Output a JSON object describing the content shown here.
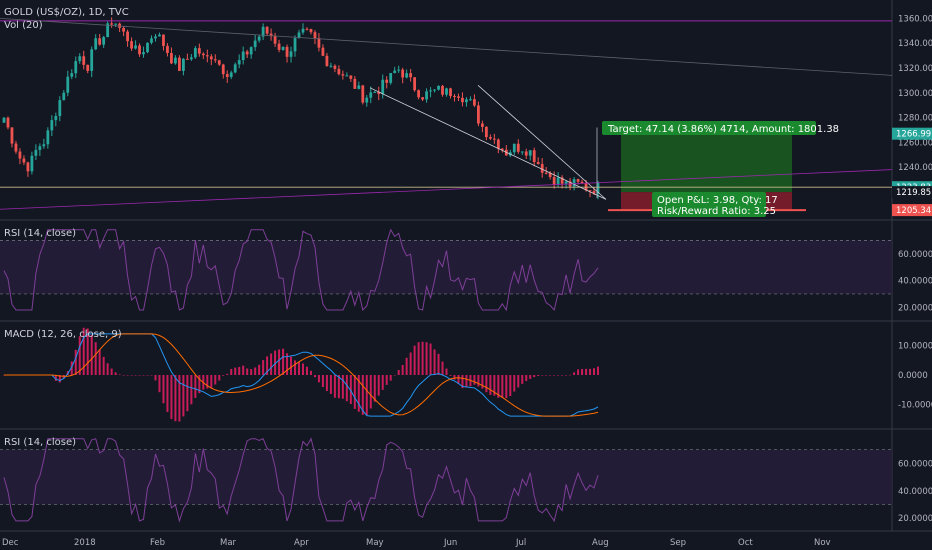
{
  "colors": {
    "background": "#131722",
    "up": "#26a69a",
    "down": "#ef5350",
    "rsi_line": "#7e3f98",
    "rsi_band": "#2a1f3d",
    "macd_line": "#2196f3",
    "signal_line": "#ff6d00",
    "hist": "#e91e63",
    "target_zone": "#1b5e20",
    "stop_zone": "#7f1d2a",
    "trend": "#9c27b0"
  },
  "chart_data": [
    {
      "type": "candlestick",
      "title": "GOLD (US$/OZ), 1D, TVC",
      "subtitle": "Vol (20)",
      "ylim": [
        1203,
        1370
      ],
      "yticks": [
        "1360.00",
        "1340.00",
        "1320.00",
        "1300.00",
        "1280.00",
        "1260.00",
        "1240.00",
        "1220.00"
      ],
      "xticks": [
        "Dec",
        "2018",
        "Feb",
        "Mar",
        "Apr",
        "May",
        "Jun",
        "Jul",
        "Aug",
        "Sep",
        "Oct",
        "Nov"
      ],
      "close_path": [
        1280,
        1262,
        1246,
        1240,
        1256,
        1262,
        1282,
        1300,
        1318,
        1330,
        1322,
        1340,
        1346,
        1360,
        1350,
        1342,
        1330,
        1338,
        1350,
        1340,
        1328,
        1320,
        1328,
        1336,
        1326,
        1332,
        1320,
        1316,
        1324,
        1332,
        1342,
        1350,
        1346,
        1336,
        1332,
        1344,
        1348,
        1344,
        1330,
        1324,
        1318,
        1312,
        1305,
        1296,
        1300,
        1304,
        1310,
        1320,
        1314,
        1305,
        1298,
        1300,
        1302,
        1300,
        1302,
        1296,
        1290,
        1274,
        1266,
        1260,
        1252,
        1256,
        1256,
        1252,
        1242,
        1234,
        1230,
        1226,
        1226,
        1226,
        1222,
        1224
      ],
      "price_labels": [
        {
          "text": "1266.99",
          "value": 1266.99,
          "color": "#26a69a"
        },
        {
          "text": "1223.83",
          "value": 1223.83,
          "color": "#26a69a"
        },
        {
          "text": "1219.85",
          "value": 1219.85,
          "color": "#131722"
        },
        {
          "text": "1205.34",
          "value": 1205.34,
          "color": "#ef5350"
        }
      ],
      "target_label": "Target: 47.14 (3.86%) 4714, Amount: 1801.38",
      "pnl_label_1": "Open P&L: 3.98, Qty: 17",
      "pnl_label_2": "Risk/Reward Ratio: 3.25"
    },
    {
      "type": "line",
      "title": "RSI (14, close)",
      "ylim": [
        15,
        80
      ],
      "yticks": [
        "60.0000",
        "40.0000",
        "20.0000"
      ],
      "bands": [
        30,
        70
      ]
    },
    {
      "type": "line",
      "title": "MACD (12, 26, close, 9)",
      "ylim": [
        -16,
        16
      ],
      "yticks": [
        "10.0000",
        "0.0000",
        "-10.0000"
      ]
    },
    {
      "type": "line",
      "title": "RSI (14, close)",
      "ylim": [
        15,
        80
      ],
      "yticks": [
        "60.0000",
        "40.0000",
        "20.0000"
      ],
      "bands": [
        30,
        70
      ]
    }
  ]
}
